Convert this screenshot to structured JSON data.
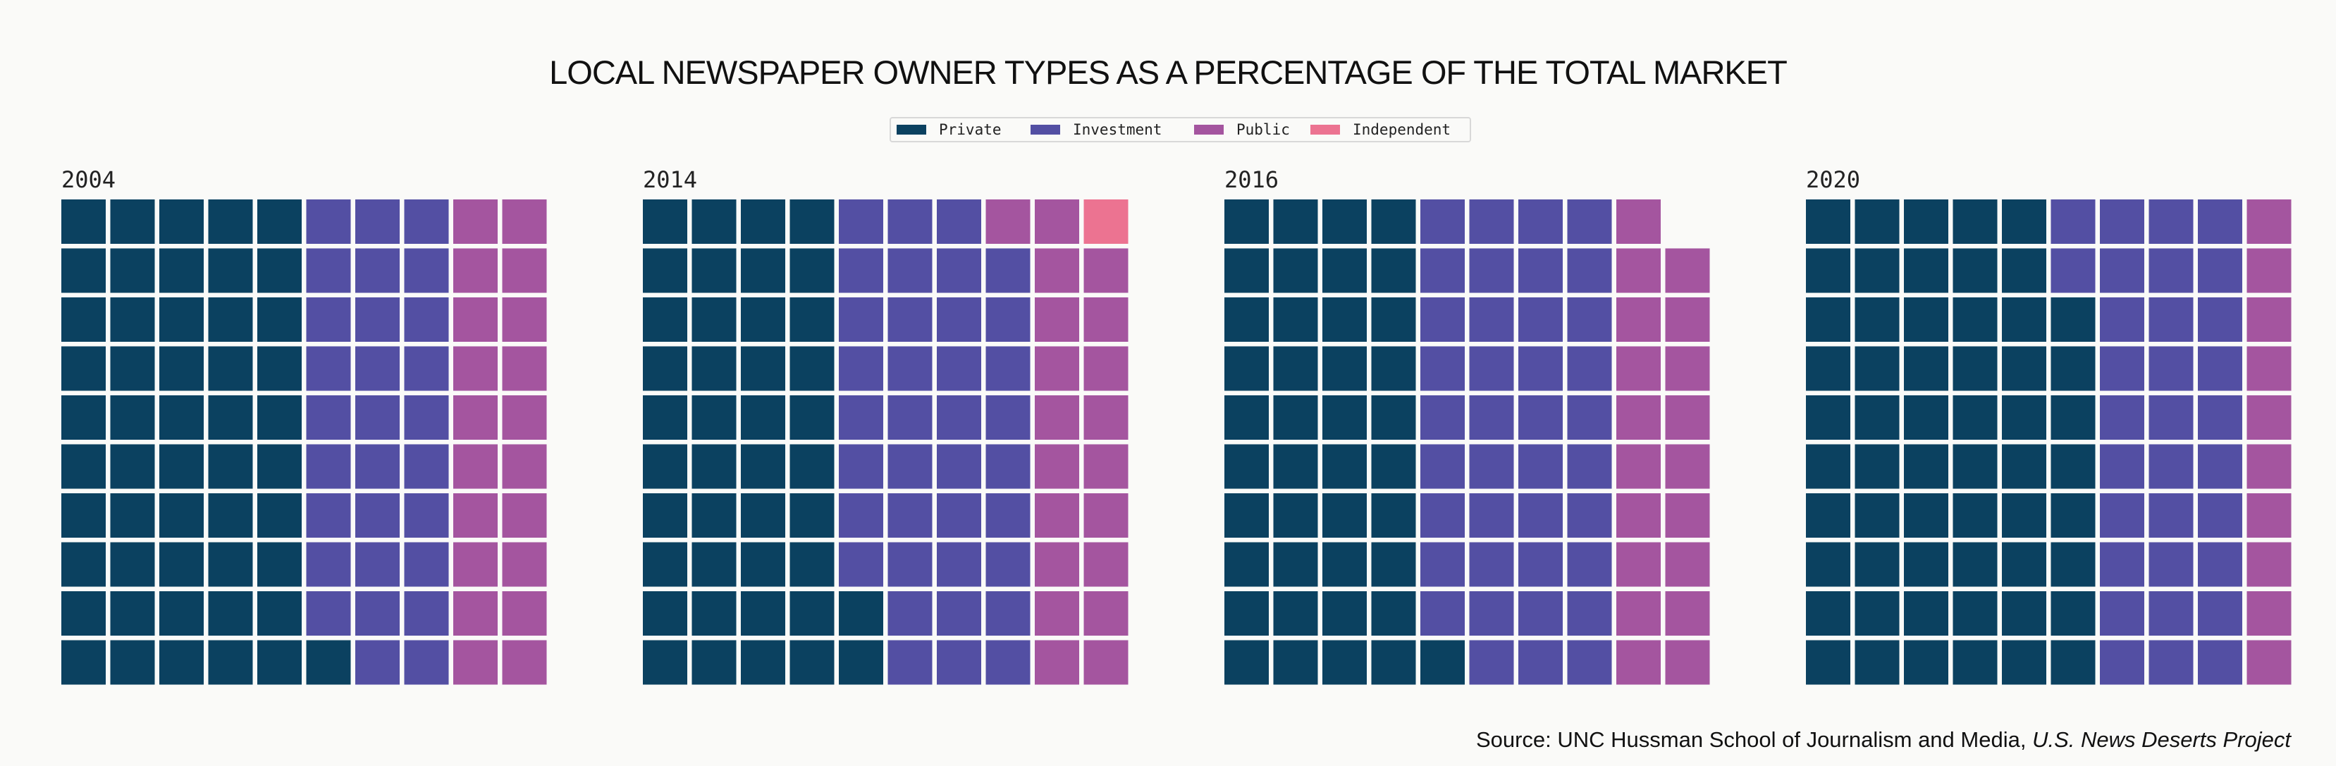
{
  "title": "LOCAL NEWSPAPER OWNER TYPES AS A PERCENTAGE OF THE TOTAL MARKET",
  "legend": [
    {
      "label": "Private",
      "color": "#0b4160"
    },
    {
      "label": "Investment",
      "color": "#534fa3"
    },
    {
      "label": "Public",
      "color": "#a4559f"
    },
    {
      "label": "Independent",
      "color": "#ec7391"
    }
  ],
  "source": {
    "prefix": "Source:  UNC Hussman School of Journalism and Media, ",
    "italic": "U.S. News Deserts Project"
  },
  "chart_data": {
    "type": "waffle",
    "title": "LOCAL NEWSPAPER OWNER TYPES AS A PERCENTAGE OF THE TOTAL MARKET",
    "categories": [
      "Private",
      "Investment",
      "Public",
      "Independent"
    ],
    "units": "percent (1 square = 1%)",
    "grid": "10 x 10",
    "panels": [
      {
        "year": "2004",
        "values": {
          "Private": 51,
          "Investment": 29,
          "Public": 20,
          "Independent": 0
        }
      },
      {
        "year": "2014",
        "values": {
          "Private": 42,
          "Investment": 37,
          "Public": 20,
          "Independent": 1
        }
      },
      {
        "year": "2016",
        "values": {
          "Private": 41,
          "Investment": 39,
          "Public": 19,
          "Independent": 0
        }
      },
      {
        "year": "2020",
        "values": {
          "Private": 58,
          "Investment": 32,
          "Public": 10,
          "Independent": 0
        }
      }
    ]
  }
}
